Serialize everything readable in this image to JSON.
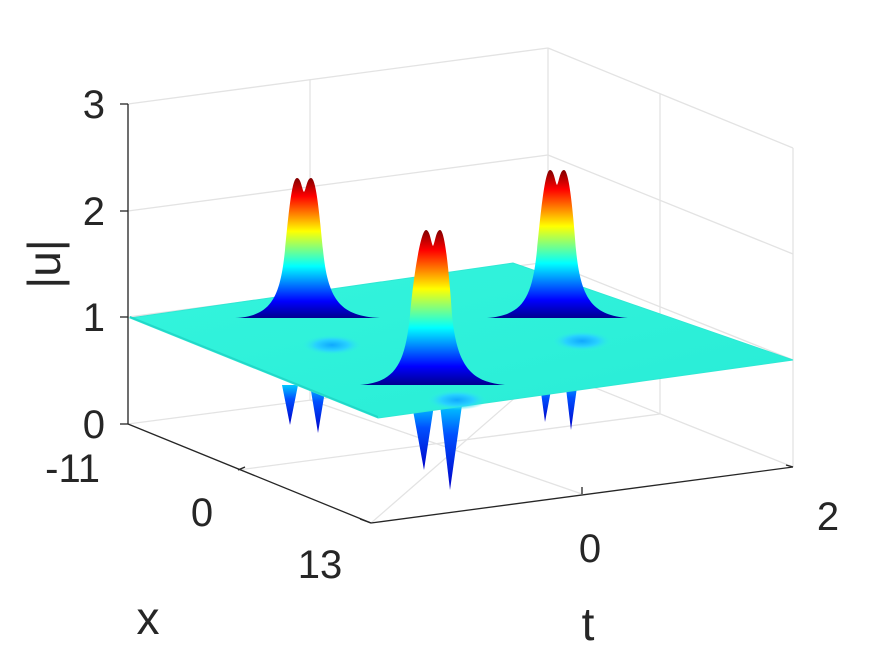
{
  "chart_data": {
    "type": "surface",
    "colormap": "jet",
    "background": "#ffffff",
    "grid": true,
    "zlabel": "|u|",
    "xlabel": "x",
    "tlabel": "t",
    "zticks": [
      "0",
      "1",
      "2",
      "3"
    ],
    "xticks": [
      "-11",
      "0",
      "13"
    ],
    "tticks": [
      "0",
      "2"
    ],
    "zlim": [
      0,
      3
    ],
    "xlim": [
      -11,
      13
    ],
    "tlim": [
      -2,
      2
    ],
    "background_level": 1,
    "peaks": [
      {
        "name": "peak-left",
        "x_center": -8,
        "t_center": -1.2,
        "max": 2.3,
        "min": 0.1
      },
      {
        "name": "peak-middle",
        "x_center": 4,
        "t_center": -0.6,
        "max": 2.2,
        "min": 0.0
      },
      {
        "name": "peak-right",
        "x_center": -4,
        "t_center": 0.9,
        "max": 2.4,
        "min": 0.1
      }
    ]
  }
}
